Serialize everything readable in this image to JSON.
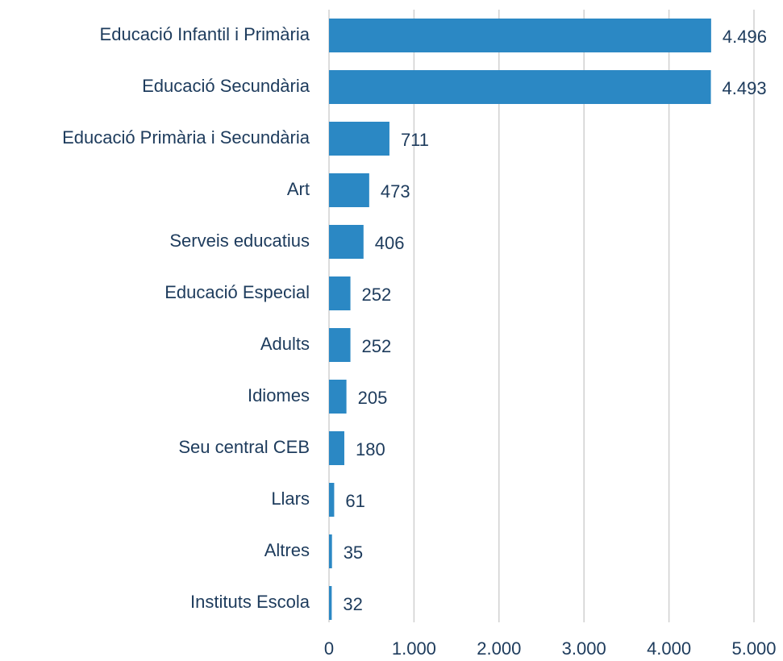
{
  "chart_data": {
    "type": "bar",
    "orientation": "horizontal",
    "categories": [
      "Educació Infantil i Primària",
      "Educació Secundària",
      "Educació Primària i Secundària",
      "Art",
      "Serveis educatius",
      "Educació Especial",
      "Adults",
      "Idiomes",
      "Seu central CEB",
      "Llars",
      "Altres",
      "Instituts Escola"
    ],
    "values": [
      4496,
      4493,
      711,
      473,
      406,
      252,
      252,
      205,
      180,
      61,
      35,
      32
    ],
    "value_labels": [
      "4.496",
      "4.493",
      "711",
      "473",
      "406",
      "252",
      "252",
      "205",
      "180",
      "61",
      "35",
      "32"
    ],
    "color": "#2b88c4",
    "xlim": [
      0,
      5000
    ],
    "xticks": [
      0,
      {
        "value": 1000,
        "label": "1.000"
      },
      {
        "value": 2000,
        "label": "2.000"
      },
      {
        "value": 3000,
        "label": "3.000"
      },
      {
        "value": 4000,
        "label": "4.000"
      },
      {
        "value": 5000,
        "label": "5.000"
      }
    ],
    "grid": true
  }
}
